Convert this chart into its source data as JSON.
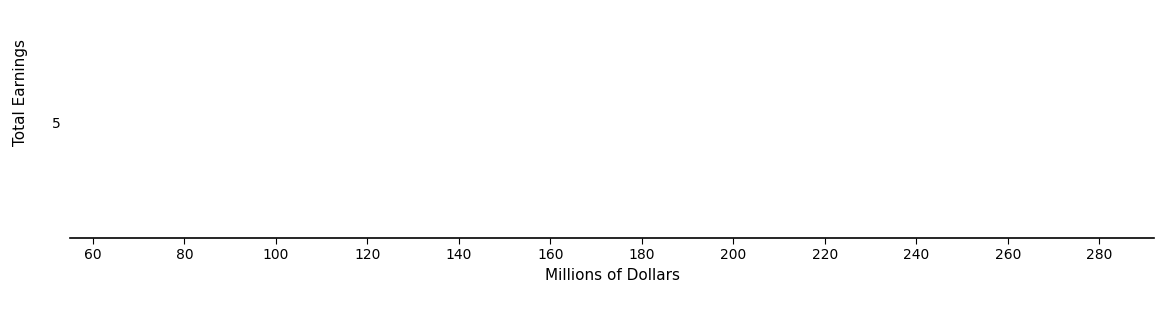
{
  "ylabel": "Total Earnings",
  "xlabel": "Millions of Dollars",
  "xlim": [
    55,
    292
  ],
  "xticks": [
    60,
    80,
    100,
    120,
    140,
    160,
    180,
    200,
    220,
    240,
    260,
    280
  ],
  "ylim": [
    0,
    10
  ],
  "ytick_val": 5.0,
  "ytick_label": "5",
  "background_color": "#ffffff",
  "figsize": [
    11.66,
    3.3
  ],
  "dpi": 100,
  "tick_fontsize": 10,
  "label_fontsize": 11
}
